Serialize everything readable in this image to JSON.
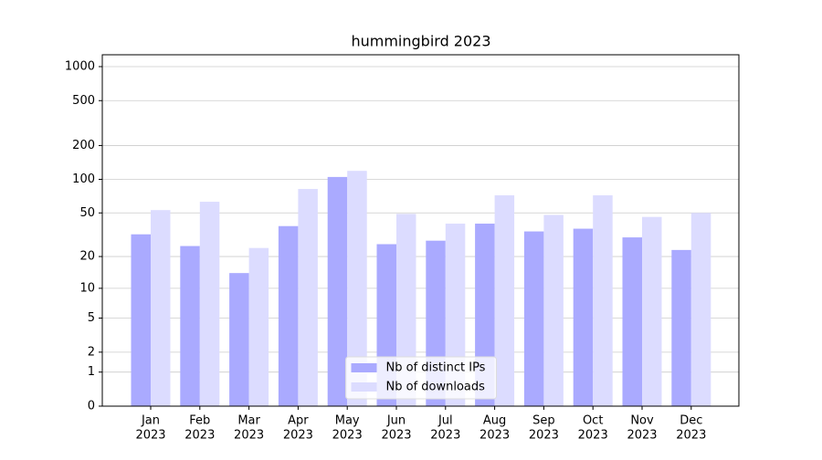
{
  "chart_data": {
    "type": "bar",
    "title": "hummingbird 2023",
    "categories": [
      [
        "Jan",
        "2023"
      ],
      [
        "Feb",
        "2023"
      ],
      [
        "Mar",
        "2023"
      ],
      [
        "Apr",
        "2023"
      ],
      [
        "May",
        "2023"
      ],
      [
        "Jun",
        "2023"
      ],
      [
        "Jul",
        "2023"
      ],
      [
        "Aug",
        "2023"
      ],
      [
        "Sep",
        "2023"
      ],
      [
        "Oct",
        "2023"
      ],
      [
        "Nov",
        "2023"
      ],
      [
        "Dec",
        "2023"
      ]
    ],
    "series": [
      {
        "name": "Nb of distinct IPs",
        "color": "#aaaaff",
        "values": [
          32,
          25,
          14,
          38,
          105,
          26,
          28,
          40,
          34,
          36,
          30,
          23
        ]
      },
      {
        "name": "Nb of downloads",
        "color": "#dcdcff",
        "values": [
          53,
          63,
          24,
          82,
          119,
          49,
          40,
          72,
          48,
          72,
          46,
          50
        ]
      }
    ],
    "yscale": "log1p",
    "ylim": [
      0,
      1273
    ],
    "yticks": [
      0,
      1,
      2,
      5,
      10,
      20,
      50,
      100,
      200,
      500,
      1000
    ],
    "grid": true,
    "legend": "lower center"
  }
}
